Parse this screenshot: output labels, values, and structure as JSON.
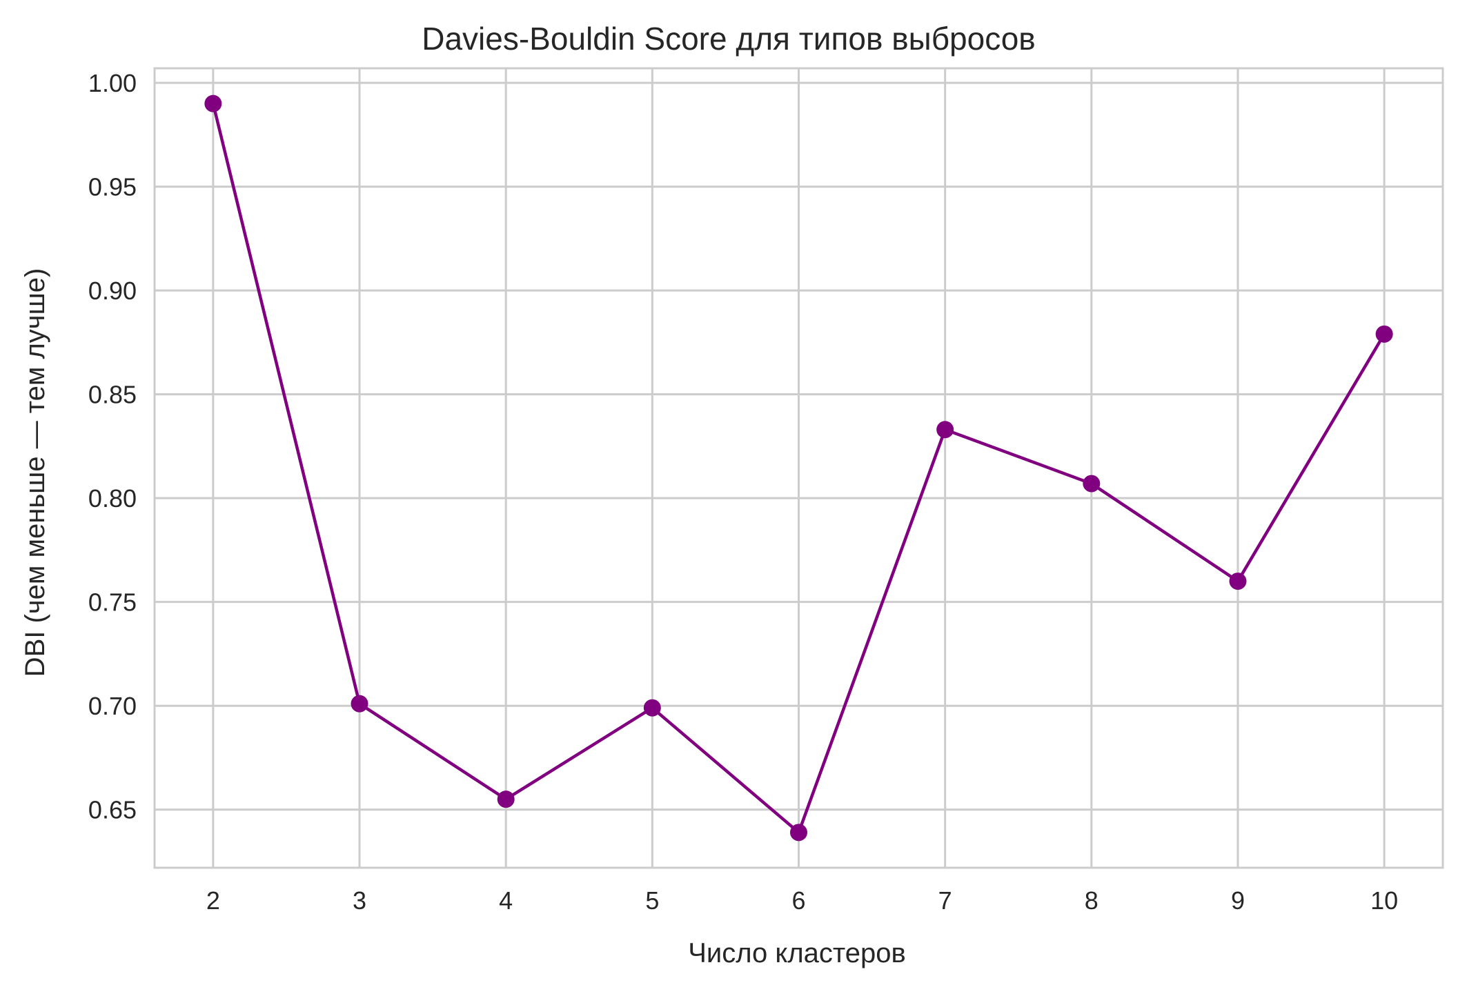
{
  "chart_data": {
    "type": "line",
    "title": "Davies-Bouldin Score для типов выбросов",
    "xlabel": "Число кластеров",
    "ylabel": "DBI (чем меньше — тем лучше)",
    "x": [
      2,
      3,
      4,
      5,
      6,
      7,
      8,
      9,
      10
    ],
    "series": [
      {
        "values": [
          0.99,
          0.701,
          0.655,
          0.699,
          0.639,
          0.833,
          0.807,
          0.76,
          0.879
        ]
      }
    ],
    "xticks": [
      "2",
      "3",
      "4",
      "5",
      "6",
      "7",
      "8",
      "9",
      "10"
    ],
    "yticks": [
      "0.65",
      "0.70",
      "0.75",
      "0.80",
      "0.85",
      "0.90",
      "0.95",
      "1.00"
    ],
    "xlim": [
      1.6,
      10.4
    ],
    "ylim": [
      0.622,
      1.007
    ],
    "grid": true,
    "colors": {
      "line": "#800080",
      "grid": "#cccccc",
      "spine": "#cccccc",
      "text": "#262626"
    }
  }
}
